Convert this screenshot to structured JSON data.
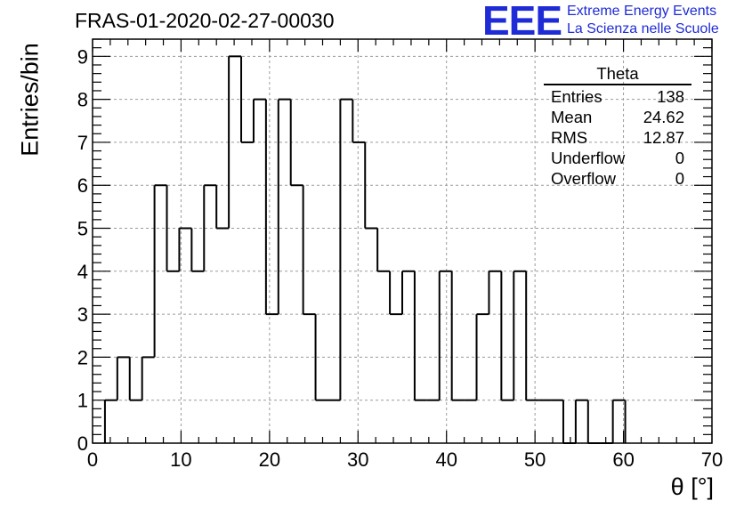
{
  "title": "FRAS-01-2020-02-27-00030",
  "logo": {
    "mark": "EEE",
    "line1": "Extreme Energy Events",
    "line2": "La Scienza nelle Scuole",
    "color": "#1e2bd6"
  },
  "stats": {
    "title": "Theta",
    "rows": [
      {
        "label": "Entries",
        "value": "138"
      },
      {
        "label": "Mean",
        "value": "24.62"
      },
      {
        "label": "RMS",
        "value": "12.87"
      },
      {
        "label": "Underflow",
        "value": "0"
      },
      {
        "label": "Overflow",
        "value": "0"
      }
    ]
  },
  "chart_data": {
    "type": "bar",
    "histogram": true,
    "xlabel": "θ [°]",
    "ylabel": "Entries/bin",
    "xlim": [
      0,
      70
    ],
    "ylim": [
      0,
      9.4
    ],
    "x_ticks": [
      0,
      10,
      20,
      30,
      40,
      50,
      60,
      70
    ],
    "y_ticks": [
      0,
      1,
      2,
      3,
      4,
      5,
      6,
      7,
      8,
      9
    ],
    "grid": true,
    "bin_edges": [
      1.4,
      2.8,
      4.2,
      5.6,
      7.0,
      8.4,
      9.8,
      11.2,
      12.6,
      14.0,
      15.4,
      16.8,
      18.2,
      19.6,
      21.0,
      22.4,
      23.8,
      25.2,
      26.6,
      28.0,
      29.4,
      30.8,
      32.2,
      33.6,
      35.0,
      36.4,
      37.8,
      39.2,
      40.6,
      42.0,
      43.4,
      44.8,
      46.2,
      47.6,
      49.0,
      50.4,
      51.8,
      53.2,
      54.6,
      56.0,
      57.4,
      58.8,
      60.2
    ],
    "values": [
      1,
      2,
      1,
      2,
      6,
      4,
      5,
      4,
      6,
      5,
      9,
      7,
      8,
      3,
      8,
      6,
      3,
      1,
      1,
      8,
      7,
      5,
      4,
      3,
      4,
      1,
      1,
      4,
      1,
      1,
      3,
      4,
      1,
      4,
      1,
      1,
      1,
      0,
      1,
      0,
      0,
      1
    ],
    "line_color": "#000000",
    "grid_color": "#9a9a9a"
  }
}
